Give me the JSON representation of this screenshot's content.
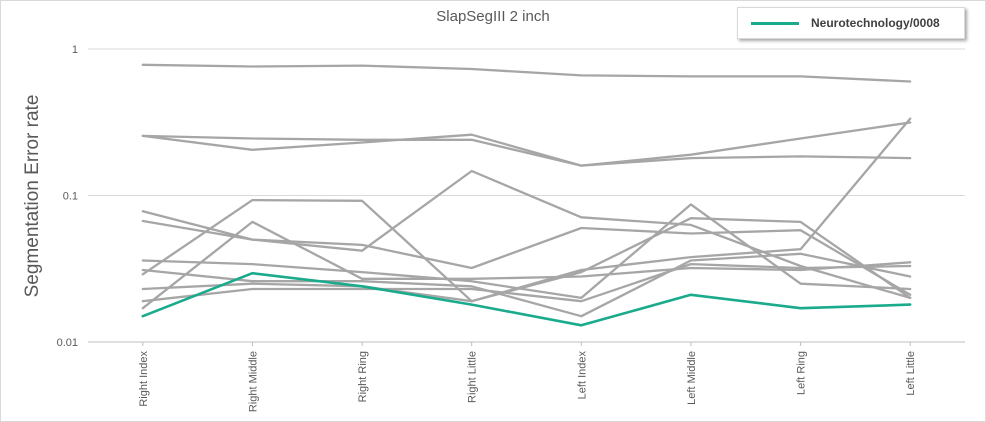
{
  "chart_data": {
    "type": "line",
    "title": "SlapSegIII 2 inch",
    "ylabel": "Segmentation Error rate",
    "xlabel": "",
    "yscale": "log",
    "ylim": [
      0.01,
      1
    ],
    "yticks": [
      "1",
      "0.1",
      "0.01"
    ],
    "ytick_values": [
      1,
      0.1,
      0.01
    ],
    "grid": "horizontal",
    "legend_position": "top-right",
    "categories": [
      "Right Index",
      "Right Middle",
      "Right Ring",
      "Right Little",
      "Left Index",
      "Left Middle",
      "Left Ring",
      "Left Little"
    ],
    "highlight_color": "#1aaa8c",
    "other_color": "#a6a6a6",
    "series": [
      {
        "name": "Neurotechnology/0008",
        "highlight": true,
        "values": [
          0.015,
          0.0295,
          0.024,
          0.018,
          0.013,
          0.021,
          0.017,
          0.018
        ]
      },
      {
        "values": [
          0.78,
          0.76,
          0.77,
          0.73,
          0.66,
          0.65,
          0.65,
          0.6
        ]
      },
      {
        "values": [
          0.255,
          0.245,
          0.24,
          0.24,
          0.16,
          0.18,
          0.185,
          0.18
        ]
      },
      {
        "values": [
          0.255,
          0.205,
          0.23,
          0.26,
          0.16,
          0.19,
          0.245,
          0.315
        ]
      },
      {
        "values": [
          0.078,
          0.05,
          0.046,
          0.032,
          0.06,
          0.055,
          0.058,
          0.021
        ]
      },
      {
        "values": [
          0.067,
          0.05,
          0.042,
          0.147,
          0.071,
          0.063,
          0.033,
          0.02
        ]
      },
      {
        "values": [
          0.029,
          0.093,
          0.092,
          0.019,
          0.03,
          0.07,
          0.066,
          0.02
        ]
      },
      {
        "values": [
          0.017,
          0.066,
          0.027,
          0.027,
          0.028,
          0.032,
          0.031,
          0.035
        ]
      },
      {
        "values": [
          0.036,
          0.034,
          0.03,
          0.026,
          0.02,
          0.087,
          0.025,
          0.023
        ]
      },
      {
        "values": [
          0.031,
          0.026,
          0.026,
          0.024,
          0.015,
          0.036,
          0.04,
          0.028
        ]
      },
      {
        "values": [
          0.023,
          0.025,
          0.024,
          0.019,
          0.031,
          0.038,
          0.043,
          0.335
        ]
      },
      {
        "values": [
          0.019,
          0.023,
          0.023,
          0.023,
          0.019,
          0.034,
          0.032,
          0.033
        ]
      }
    ]
  }
}
